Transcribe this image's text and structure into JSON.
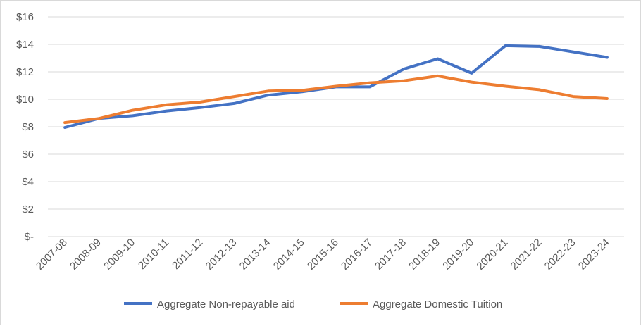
{
  "chart_data": {
    "type": "line",
    "title": "",
    "xlabel": "",
    "ylabel": "",
    "categories": [
      "2007-08",
      "2008-09",
      "2009-10",
      "2010-11",
      "2011-12",
      "2012-13",
      "2013-14",
      "2014-15",
      "2015-16",
      "2016-17",
      "2017-18",
      "2018-19",
      "2019-20",
      "2020-21",
      "2021-22",
      "2022-23",
      "2023-24"
    ],
    "ylim": [
      0,
      16
    ],
    "yticks": [
      0,
      2,
      4,
      6,
      8,
      10,
      12,
      14,
      16
    ],
    "ytick_labels": [
      "$-",
      "$2",
      "$4",
      "$6",
      "$8",
      "$10",
      "$12",
      "$14",
      "$16"
    ],
    "grid": true,
    "legend_position": "bottom",
    "series": [
      {
        "name": "Aggregate Non-repayable aid",
        "color": "#4472c4",
        "values": [
          7.95,
          8.6,
          8.8,
          9.15,
          9.4,
          9.7,
          10.3,
          10.55,
          10.9,
          10.9,
          12.2,
          12.95,
          11.9,
          13.9,
          13.85,
          13.45,
          13.05
        ]
      },
      {
        "name": "Aggregate Domestic Tuition",
        "color": "#ed7d31",
        "values": [
          8.3,
          8.6,
          9.2,
          9.6,
          9.8,
          10.2,
          10.6,
          10.65,
          10.95,
          11.2,
          11.35,
          11.7,
          11.25,
          10.95,
          10.7,
          10.2,
          10.05
        ]
      }
    ]
  }
}
